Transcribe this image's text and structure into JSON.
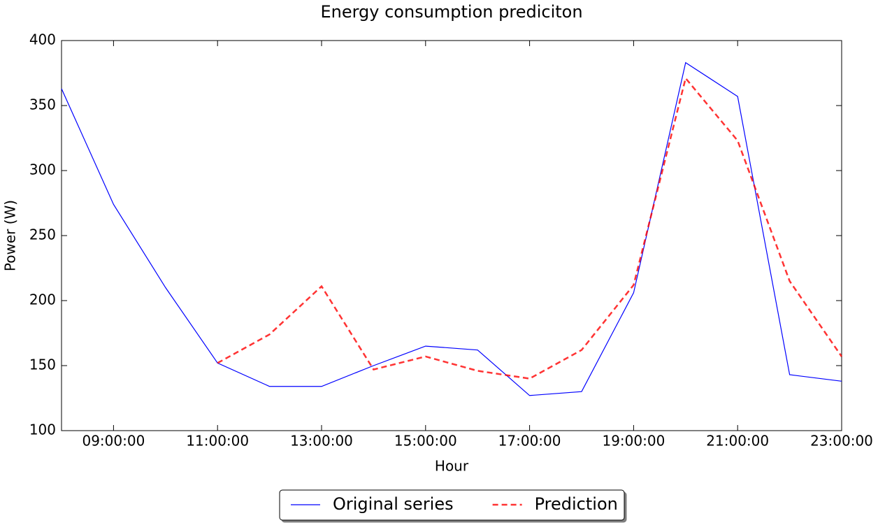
{
  "chart_data": {
    "type": "line",
    "title": "Energy consumption prediciton",
    "xlabel": "Hour",
    "ylabel": "Power (W)",
    "x": [
      "08:00:00",
      "09:00:00",
      "10:00:00",
      "11:00:00",
      "12:00:00",
      "13:00:00",
      "14:00:00",
      "15:00:00",
      "16:00:00",
      "17:00:00",
      "18:00:00",
      "19:00:00",
      "20:00:00",
      "21:00:00",
      "22:00:00",
      "23:00:00"
    ],
    "series": [
      {
        "name": "Original series",
        "color": "#0000ff",
        "dash": "solid",
        "values": [
          363,
          274,
          210,
          152,
          134,
          134,
          150,
          165,
          162,
          127,
          130,
          206,
          383,
          357,
          143,
          138
        ]
      },
      {
        "name": "Prediction",
        "color": "#ff0000",
        "dash": "dashed",
        "values": [
          null,
          null,
          null,
          152,
          174,
          211,
          147,
          157,
          146,
          140,
          162,
          212,
          371,
          323,
          215,
          157
        ]
      }
    ],
    "xlim": [
      "08:00:00",
      "23:00:00"
    ],
    "xticks": [
      "09:00:00",
      "11:00:00",
      "13:00:00",
      "15:00:00",
      "17:00:00",
      "19:00:00",
      "21:00:00",
      "23:00:00"
    ],
    "ylim": [
      100,
      400
    ],
    "yticks": [
      100,
      150,
      200,
      250,
      300,
      350,
      400
    ],
    "grid": false,
    "legend": "bottom"
  }
}
